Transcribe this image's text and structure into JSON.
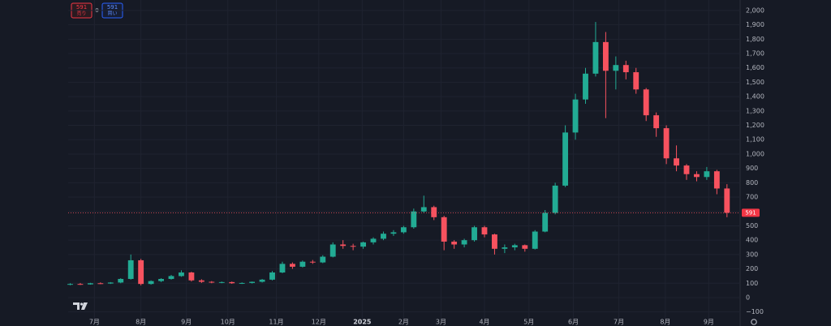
{
  "chart_data": {
    "type": "candlestick",
    "header": {
      "sell_price": 591,
      "sell_label": "売り",
      "spread": 0,
      "buy_price": 591,
      "buy_label": "買い"
    },
    "x": [
      0,
      1,
      2,
      3,
      4,
      5,
      6,
      7,
      8,
      9,
      10,
      11,
      12,
      13,
      14,
      15,
      16,
      17,
      18,
      19,
      20,
      21,
      22,
      23,
      24,
      25,
      26,
      27,
      28,
      29,
      30,
      31,
      32,
      33,
      34,
      35,
      36,
      37,
      38,
      39,
      40,
      41,
      42,
      43,
      44,
      45,
      46,
      47,
      48,
      49,
      50,
      51,
      52,
      53,
      54,
      55,
      56,
      57,
      58,
      59,
      60,
      61,
      62,
      63,
      64,
      65
    ],
    "open": [
      90,
      95,
      92,
      100,
      98,
      105,
      130,
      260,
      95,
      115,
      130,
      150,
      175,
      120,
      110,
      105,
      108,
      100,
      102,
      110,
      125,
      175,
      235,
      215,
      250,
      245,
      285,
      370,
      360,
      355,
      385,
      410,
      445,
      455,
      490,
      600,
      630,
      560,
      390,
      370,
      400,
      490,
      440,
      340,
      350,
      365,
      340,
      460,
      590,
      780,
      1150,
      1380,
      1560,
      1780,
      1580,
      1620,
      1570,
      1450,
      1270,
      1180,
      970,
      920,
      860,
      840,
      880,
      760
    ],
    "high": [
      100,
      102,
      103,
      106,
      108,
      135,
      300,
      270,
      120,
      135,
      158,
      190,
      180,
      128,
      115,
      112,
      112,
      106,
      112,
      130,
      185,
      250,
      245,
      258,
      262,
      295,
      385,
      400,
      375,
      390,
      420,
      460,
      470,
      500,
      620,
      710,
      640,
      570,
      400,
      410,
      500,
      500,
      445,
      370,
      375,
      370,
      470,
      610,
      800,
      1200,
      1420,
      1600,
      1920,
      1850,
      1680,
      1650,
      1600,
      1460,
      1290,
      1200,
      1060,
      930,
      880,
      910,
      890,
      790
    ],
    "low": [
      86,
      88,
      90,
      94,
      95,
      100,
      125,
      85,
      90,
      108,
      125,
      145,
      112,
      102,
      100,
      100,
      96,
      95,
      98,
      105,
      120,
      170,
      200,
      210,
      235,
      240,
      280,
      340,
      330,
      340,
      370,
      400,
      430,
      445,
      480,
      590,
      540,
      330,
      340,
      350,
      390,
      420,
      300,
      310,
      330,
      320,
      335,
      455,
      580,
      770,
      1100,
      1350,
      1540,
      1250,
      1450,
      1520,
      1420,
      1230,
      1120,
      930,
      880,
      820,
      810,
      820,
      720,
      560
    ],
    "close": [
      95,
      92,
      100,
      98,
      105,
      130,
      260,
      95,
      115,
      130,
      150,
      175,
      120,
      110,
      105,
      108,
      100,
      102,
      110,
      125,
      175,
      235,
      215,
      250,
      245,
      285,
      370,
      360,
      355,
      385,
      410,
      445,
      455,
      490,
      600,
      630,
      560,
      390,
      370,
      400,
      490,
      440,
      340,
      350,
      365,
      340,
      460,
      590,
      780,
      1150,
      1380,
      1560,
      1780,
      1580,
      1620,
      1570,
      1450,
      1270,
      1180,
      970,
      920,
      860,
      840,
      880,
      760,
      591
    ],
    "up_color": "#22ab94",
    "down_color": "#f7525f",
    "last_price": 591,
    "xlim": [
      -0.2,
      66.3
    ],
    "xticks": [
      {
        "value": 2.4,
        "label": "7月"
      },
      {
        "value": 7.0,
        "label": "8月"
      },
      {
        "value": 11.5,
        "label": "9月"
      },
      {
        "value": 15.6,
        "label": "10月"
      },
      {
        "value": 20.4,
        "label": "11月"
      },
      {
        "value": 24.6,
        "label": "12月"
      },
      {
        "value": 28.9,
        "label": "2025"
      },
      {
        "value": 33.0,
        "label": "2月"
      },
      {
        "value": 36.7,
        "label": "3月"
      },
      {
        "value": 41.0,
        "label": "4月"
      },
      {
        "value": 45.4,
        "label": "5月"
      },
      {
        "value": 49.8,
        "label": "6月"
      },
      {
        "value": 54.3,
        "label": "7月"
      },
      {
        "value": 58.9,
        "label": "8月"
      },
      {
        "value": 63.2,
        "label": "9月"
      }
    ],
    "ylim": [
      -147,
      2073
    ],
    "yticks": [
      {
        "value": 2000,
        "label": "2,000"
      },
      {
        "value": 1900,
        "label": "1,900"
      },
      {
        "value": 1800,
        "label": "1,800"
      },
      {
        "value": 1700,
        "label": "1,700"
      },
      {
        "value": 1600,
        "label": "1,600"
      },
      {
        "value": 1500,
        "label": "1,500"
      },
      {
        "value": 1400,
        "label": "1,400"
      },
      {
        "value": 1300,
        "label": "1,300"
      },
      {
        "value": 1200,
        "label": "1,200"
      },
      {
        "value": 1100,
        "label": "1,100"
      },
      {
        "value": 1000,
        "label": "1,000"
      },
      900,
      800,
      700,
      600,
      500,
      400,
      300,
      200,
      100,
      0,
      {
        "value": -100,
        "label": "−100"
      }
    ],
    "grid": true
  }
}
